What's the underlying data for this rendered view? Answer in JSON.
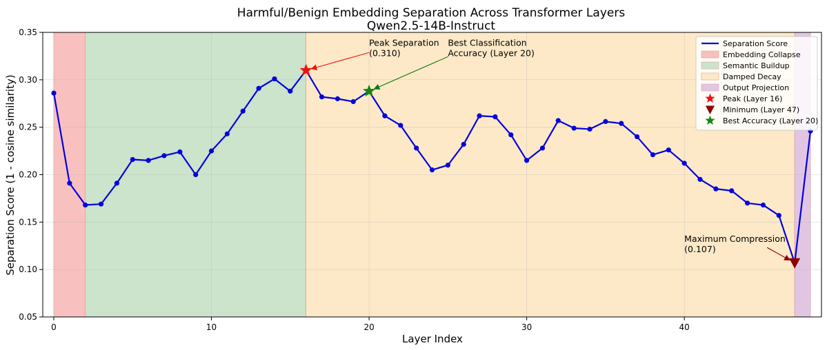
{
  "chart_data": {
    "type": "line",
    "title": "Harmful/Benign Embedding Separation Across Transformer Layers",
    "subtitle": "Qwen2.5-14B-Instruct",
    "xlabel": "Layer Index",
    "ylabel": "Separation Score (1 - cosine similarity)",
    "xlim": [
      -0.7,
      48.7
    ],
    "ylim": [
      0.05,
      0.35
    ],
    "xticks": [
      0,
      10,
      20,
      30,
      40
    ],
    "yticks": [
      0.05,
      0.1,
      0.15,
      0.2,
      0.25,
      0.3,
      0.35
    ],
    "ytick_labels": [
      "0.05",
      "0.10",
      "0.15",
      "0.20",
      "0.25",
      "0.30",
      "0.35"
    ],
    "grid": true,
    "legend_position": "top-right",
    "series": [
      {
        "name": "Separation Score",
        "color": "#0000dd",
        "x": [
          0,
          1,
          2,
          3,
          4,
          5,
          6,
          7,
          8,
          9,
          10,
          11,
          12,
          13,
          14,
          15,
          16,
          17,
          18,
          19,
          20,
          21,
          22,
          23,
          24,
          25,
          26,
          27,
          28,
          29,
          30,
          31,
          32,
          33,
          34,
          35,
          36,
          37,
          38,
          39,
          40,
          41,
          42,
          43,
          44,
          45,
          46,
          47,
          48
        ],
        "values": [
          0.286,
          0.191,
          0.168,
          0.169,
          0.191,
          0.216,
          0.215,
          0.22,
          0.224,
          0.2,
          0.225,
          0.243,
          0.267,
          0.291,
          0.301,
          0.288,
          0.31,
          0.282,
          0.28,
          0.277,
          0.288,
          0.262,
          0.252,
          0.228,
          0.205,
          0.21,
          0.232,
          0.262,
          0.261,
          0.242,
          0.215,
          0.228,
          0.257,
          0.249,
          0.248,
          0.256,
          0.254,
          0.24,
          0.221,
          0.226,
          0.212,
          0.195,
          0.185,
          0.183,
          0.17,
          0.168,
          0.157,
          0.107,
          0.246
        ]
      }
    ],
    "regions": [
      {
        "name": "Embedding Collapse",
        "x_start": 0,
        "x_end": 2,
        "color": "#f9c0c0"
      },
      {
        "name": "Semantic Buildup",
        "x_start": 2,
        "x_end": 16,
        "color": "#cce3cc"
      },
      {
        "name": "Damped Decay",
        "x_start": 16,
        "x_end": 47,
        "color": "#fde9c7"
      },
      {
        "name": "Output Projection",
        "x_start": 47,
        "x_end": 48,
        "color": "#e1c6e4"
      }
    ],
    "markers": [
      {
        "name": "Peak (Layer 16)",
        "layer": 16,
        "value": 0.31,
        "shape": "star",
        "color": "#ee1111"
      },
      {
        "name": "Minimum (Layer 47)",
        "layer": 47,
        "value": 0.107,
        "shape": "triangle-down",
        "color": "#8b0000"
      },
      {
        "name": "Best Accuracy (Layer 20)",
        "layer": 20,
        "value": 0.288,
        "shape": "star",
        "color": "#118811"
      }
    ],
    "annotations": [
      {
        "lines": [
          "Peak Separation",
          "(0.310)"
        ],
        "text_x": 20.0,
        "text_y": 0.336,
        "target_x": 16,
        "target_y": 0.31,
        "color": "#ee1111"
      },
      {
        "lines": [
          "Best Classification",
          "Accuracy (Layer 20)"
        ],
        "text_x": 25.0,
        "text_y": 0.336,
        "target_x": 20,
        "target_y": 0.288,
        "color": "#117711"
      },
      {
        "lines": [
          "Maximum Compression",
          "(0.107)"
        ],
        "text_x": 40.0,
        "text_y": 0.129,
        "target_x": 47,
        "target_y": 0.107,
        "color": "#8b0000"
      }
    ]
  }
}
